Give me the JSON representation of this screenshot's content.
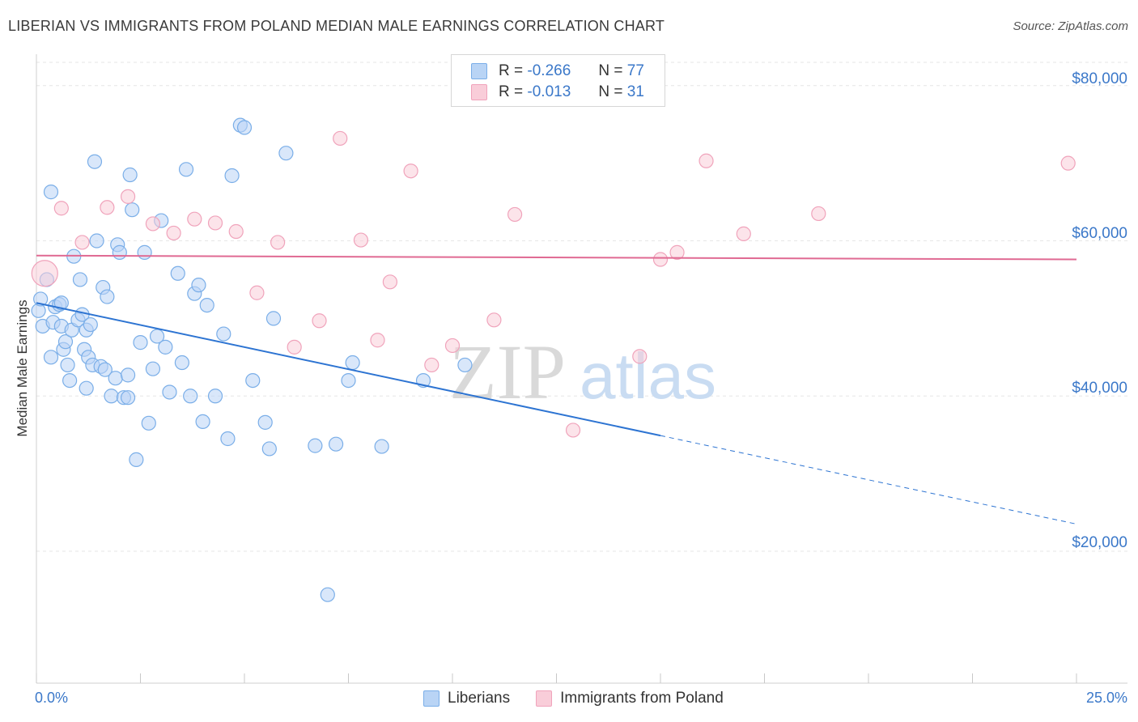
{
  "header": {
    "title": "LIBERIAN VS IMMIGRANTS FROM POLAND MEDIAN MALE EARNINGS CORRELATION CHART",
    "source": "Source: ZipAtlas.com"
  },
  "watermark": {
    "zip": "ZIP",
    "atlas": "atlas"
  },
  "colors": {
    "liberians": "#7aaee8",
    "liberians_fill": "#b9d4f5",
    "poland": "#f0a3bb",
    "poland_fill": "#f9cdd9",
    "blue_line": "#2d74d2",
    "pink_line": "#e06a93",
    "axis_text": "#3b78c9"
  },
  "legend": {
    "r_label": "R =",
    "n_label": "N =",
    "liberians": {
      "r": "-0.266",
      "n": "77"
    },
    "poland": {
      "r": "-0.013",
      "n": "31"
    }
  },
  "bottom_legend": {
    "liberians": "Liberians",
    "poland": "Immigrants from Poland"
  },
  "chart_data": {
    "type": "scatter",
    "title": "LIBERIAN VS IMMIGRANTS FROM POLAND MEDIAN MALE EARNINGS CORRELATION CHART",
    "xlabel": "",
    "ylabel": "Median Male Earnings",
    "xlim": [
      0,
      25
    ],
    "ylim": [
      3000,
      83000
    ],
    "x_tick_labels": [
      "0.0%",
      "25.0%"
    ],
    "y_tick_labels": [
      "$20,000",
      "$40,000",
      "$60,000",
      "$80,000"
    ],
    "y_ticks": [
      20000,
      40000,
      60000,
      80000
    ],
    "grid": true,
    "legend_position": "top-center",
    "series": [
      {
        "name": "Liberians",
        "points": [
          [
            0.05,
            51000
          ],
          [
            0.1,
            52500
          ],
          [
            0.15,
            49000
          ],
          [
            0.25,
            55000
          ],
          [
            0.35,
            45000
          ],
          [
            0.4,
            49500
          ],
          [
            0.45,
            51500
          ],
          [
            0.55,
            51800
          ],
          [
            0.6,
            49000
          ],
          [
            0.65,
            46000
          ],
          [
            0.7,
            47000
          ],
          [
            0.75,
            44000
          ],
          [
            0.8,
            42000
          ],
          [
            0.85,
            48500
          ],
          [
            0.9,
            58000
          ],
          [
            1.0,
            49800
          ],
          [
            1.05,
            55000
          ],
          [
            1.1,
            50500
          ],
          [
            1.15,
            46000
          ],
          [
            1.2,
            48500
          ],
          [
            1.25,
            45000
          ],
          [
            1.3,
            49200
          ],
          [
            1.35,
            44000
          ],
          [
            1.45,
            60000
          ],
          [
            1.55,
            43800
          ],
          [
            1.6,
            54000
          ],
          [
            1.65,
            43400
          ],
          [
            1.7,
            52800
          ],
          [
            1.8,
            40000
          ],
          [
            1.9,
            42300
          ],
          [
            1.95,
            59500
          ],
          [
            2.0,
            58500
          ],
          [
            2.1,
            39800
          ],
          [
            2.2,
            42700
          ],
          [
            2.25,
            68500
          ],
          [
            2.3,
            64000
          ],
          [
            2.4,
            31800
          ],
          [
            2.5,
            46900
          ],
          [
            2.6,
            58500
          ],
          [
            2.7,
            36500
          ],
          [
            2.8,
            43500
          ],
          [
            2.9,
            47700
          ],
          [
            3.0,
            62600
          ],
          [
            3.1,
            46300
          ],
          [
            3.2,
            40500
          ],
          [
            3.4,
            55800
          ],
          [
            3.5,
            44300
          ],
          [
            3.6,
            69200
          ],
          [
            3.7,
            40000
          ],
          [
            3.8,
            53200
          ],
          [
            3.9,
            54300
          ],
          [
            4.0,
            36700
          ],
          [
            4.1,
            51700
          ],
          [
            4.3,
            40000
          ],
          [
            4.5,
            48000
          ],
          [
            4.6,
            34500
          ],
          [
            4.7,
            68400
          ],
          [
            4.9,
            74900
          ],
          [
            5.0,
            74600
          ],
          [
            5.2,
            42000
          ],
          [
            5.5,
            36600
          ],
          [
            5.6,
            33200
          ],
          [
            5.7,
            50000
          ],
          [
            6.0,
            71300
          ],
          [
            6.7,
            33600
          ],
          [
            7.0,
            14400
          ],
          [
            7.2,
            33800
          ],
          [
            7.5,
            42000
          ],
          [
            7.6,
            44300
          ],
          [
            8.3,
            33500
          ],
          [
            9.3,
            42000
          ],
          [
            10.3,
            44000
          ],
          [
            0.35,
            66300
          ],
          [
            1.4,
            70200
          ],
          [
            0.6,
            52000
          ],
          [
            1.2,
            41000
          ],
          [
            2.2,
            39800
          ]
        ]
      },
      {
        "name": "Immigrants from Poland",
        "points": [
          [
            0.2,
            55800
          ],
          [
            0.6,
            64200
          ],
          [
            1.1,
            59800
          ],
          [
            1.7,
            64300
          ],
          [
            2.2,
            65700
          ],
          [
            2.8,
            62200
          ],
          [
            3.3,
            61000
          ],
          [
            3.8,
            62800
          ],
          [
            4.3,
            62300
          ],
          [
            4.8,
            61200
          ],
          [
            5.3,
            53300
          ],
          [
            5.8,
            59800
          ],
          [
            6.2,
            46300
          ],
          [
            6.8,
            49700
          ],
          [
            7.3,
            73200
          ],
          [
            7.8,
            60100
          ],
          [
            8.2,
            47200
          ],
          [
            8.5,
            54700
          ],
          [
            9.0,
            69000
          ],
          [
            9.5,
            44000
          ],
          [
            10.0,
            46500
          ],
          [
            11.0,
            49800
          ],
          [
            11.5,
            63400
          ],
          [
            12.9,
            35600
          ],
          [
            14.5,
            45100
          ],
          [
            15.0,
            57600
          ],
          [
            15.4,
            58500
          ],
          [
            16.1,
            70300
          ],
          [
            17.0,
            60900
          ],
          [
            18.8,
            63500
          ],
          [
            24.8,
            70000
          ]
        ]
      }
    ],
    "trend_lines": [
      {
        "name": "Liberians",
        "x0": 0,
        "y0": 52000,
        "x_solid_end": 15,
        "x1": 25,
        "y1": 23500
      },
      {
        "name": "Immigrants from Poland",
        "x0": 0,
        "y0": 58100,
        "x1": 25,
        "y1": 57600
      }
    ]
  }
}
